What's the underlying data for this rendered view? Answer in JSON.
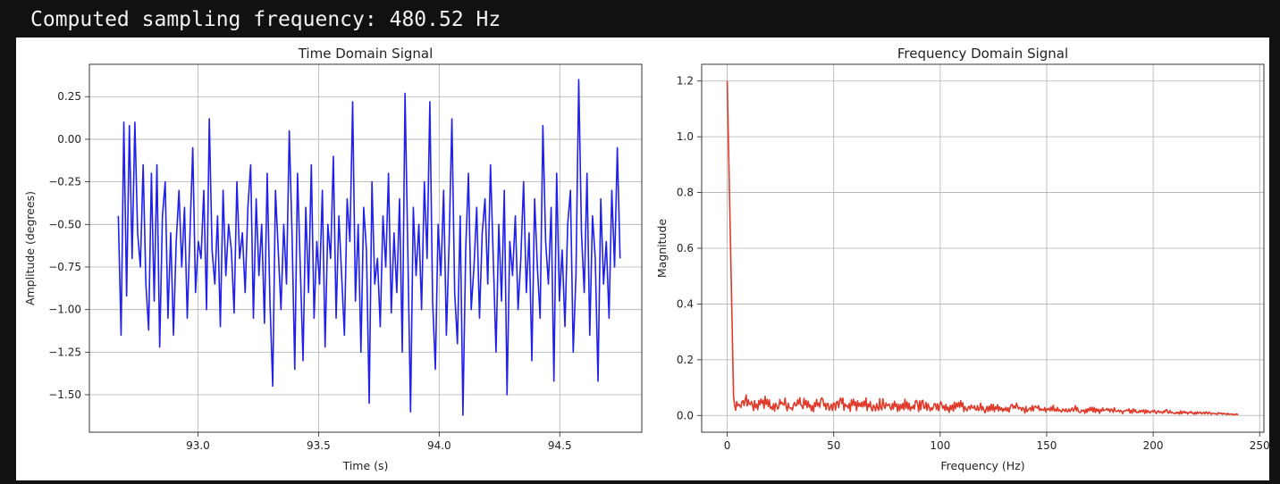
{
  "header": {
    "label": "Computed sampling frequency:",
    "value": "480.52",
    "unit": "Hz"
  },
  "chart_data": [
    {
      "type": "line",
      "title": "Time Domain Signal",
      "xlabel": "Time (s)",
      "ylabel": "Amplitude (degrees)",
      "xlim": [
        92.55,
        94.84
      ],
      "ylim": [
        -1.72,
        0.44
      ],
      "xticks": [
        93.0,
        93.5,
        94.0,
        94.5
      ],
      "xtick_labels": [
        "93.0",
        "93.5",
        "94.0",
        "94.5"
      ],
      "yticks": [
        0.25,
        0.0,
        -0.25,
        -0.5,
        -0.75,
        -1.0,
        -1.25,
        -1.5
      ],
      "ytick_labels": [
        "0.25",
        "0.00",
        "−0.25",
        "−0.50",
        "−0.75",
        "−1.00",
        "−1.25",
        "−1.50"
      ],
      "grid": true,
      "color": "#2020ee",
      "series": [
        {
          "x_start": 92.67,
          "x_end": 94.75,
          "values": [
            -0.45,
            -1.15,
            0.1,
            -0.92,
            0.08,
            -0.7,
            0.1,
            -0.55,
            -0.75,
            -0.15,
            -0.85,
            -1.12,
            -0.2,
            -0.95,
            -0.15,
            -1.22,
            -0.45,
            -0.25,
            -1.05,
            -0.55,
            -1.15,
            -0.6,
            -0.3,
            -0.75,
            -0.4,
            -1.05,
            -0.55,
            -0.05,
            -0.9,
            -0.6,
            -0.7,
            -0.3,
            -1.0,
            0.12,
            -0.65,
            -0.85,
            -0.45,
            -1.1,
            -0.3,
            -0.8,
            -0.5,
            -0.65,
            -1.02,
            -0.25,
            -0.7,
            -0.55,
            -0.9,
            -0.4,
            -0.15,
            -1.05,
            -0.35,
            -0.8,
            -0.5,
            -1.08,
            -0.2,
            -0.95,
            -1.45,
            -0.3,
            -0.65,
            -1.0,
            -0.5,
            -0.85,
            0.05,
            -0.55,
            -1.35,
            -0.2,
            -0.75,
            -1.3,
            -0.4,
            -0.9,
            -0.15,
            -1.05,
            -0.6,
            -0.85,
            -0.3,
            -1.22,
            -0.5,
            -0.7,
            -0.1,
            -1.05,
            -0.45,
            -0.8,
            -1.15,
            -0.35,
            -0.6,
            0.22,
            -0.95,
            -0.5,
            -1.25,
            -0.4,
            -0.65,
            -1.55,
            -0.25,
            -0.85,
            -0.7,
            -1.1,
            -0.45,
            -0.75,
            -0.2,
            -1.02,
            -0.55,
            -0.9,
            -0.35,
            -1.25,
            0.27,
            -0.65,
            -1.6,
            -0.4,
            -0.8,
            -0.5,
            -1.0,
            -0.25,
            -0.7,
            0.22,
            -0.95,
            -1.35,
            -0.5,
            -0.8,
            -0.3,
            -1.15,
            -0.6,
            0.12,
            -0.9,
            -1.2,
            -0.45,
            -1.62,
            -0.65,
            -0.2,
            -1.0,
            -0.75,
            -0.4,
            -1.05,
            -0.55,
            -0.35,
            -0.85,
            -0.15,
            -0.7,
            -1.25,
            -0.5,
            -0.95,
            -0.3,
            -1.5,
            -0.6,
            -0.8,
            -0.45,
            -1.0,
            -0.7,
            -0.25,
            -0.9,
            -0.55,
            -1.3,
            -0.35,
            -0.75,
            -1.05,
            0.08,
            -0.6,
            -0.85,
            -0.4,
            -1.42,
            -0.2,
            -0.95,
            -0.65,
            -1.1,
            -0.5,
            -0.3,
            -1.25,
            -0.8,
            0.35,
            -0.55,
            -0.9,
            -0.2,
            -1.15,
            -0.45,
            -0.7,
            -1.42,
            -0.35,
            -0.85,
            -0.6,
            -1.05,
            -0.3,
            -0.75,
            -0.05,
            -0.7
          ]
        }
      ]
    },
    {
      "type": "line",
      "title": "Frequency Domain Signal",
      "xlabel": "Frequency (Hz)",
      "ylabel": "Magnitude",
      "xlim": [
        -12,
        252
      ],
      "ylim": [
        -0.06,
        1.26
      ],
      "xticks": [
        0,
        50,
        100,
        150,
        200,
        250
      ],
      "xtick_labels": [
        "0",
        "50",
        "100",
        "150",
        "200",
        "250"
      ],
      "yticks": [
        0.0,
        0.2,
        0.4,
        0.6,
        0.8,
        1.0,
        1.2
      ],
      "ytick_labels": [
        "0.0",
        "0.2",
        "0.4",
        "0.6",
        "0.8",
        "1.0",
        "1.2"
      ],
      "grid": true,
      "color": "#e03a2a",
      "series": [
        {
          "x_start": 0,
          "x_end": 240,
          "peak_value": 1.2,
          "values": [
            0.045,
            0.035,
            0.055,
            0.03,
            0.042,
            0.05,
            0.028,
            0.038,
            0.052,
            0.025,
            0.04,
            0.048,
            0.03,
            0.036,
            0.05,
            0.027,
            0.035,
            0.045,
            0.03,
            0.04,
            0.033,
            0.045,
            0.025,
            0.038,
            0.042,
            0.028,
            0.036,
            0.04,
            0.026,
            0.034,
            0.038,
            0.025,
            0.033,
            0.036,
            0.022,
            0.03,
            0.034,
            0.024,
            0.03,
            0.032,
            0.02,
            0.028,
            0.031,
            0.022,
            0.026,
            0.029,
            0.018,
            0.025,
            0.027,
            0.019,
            0.024,
            0.026,
            0.017,
            0.022,
            0.024,
            0.016,
            0.02,
            0.022,
            0.015,
            0.019,
            0.02,
            0.013,
            0.017,
            0.018,
            0.012,
            0.015,
            0.016,
            0.011,
            0.013,
            0.014,
            0.009,
            0.011,
            0.012,
            0.008,
            0.009,
            0.01,
            0.006,
            0.007,
            0.006,
            0.004,
            0.004
          ]
        }
      ]
    }
  ]
}
